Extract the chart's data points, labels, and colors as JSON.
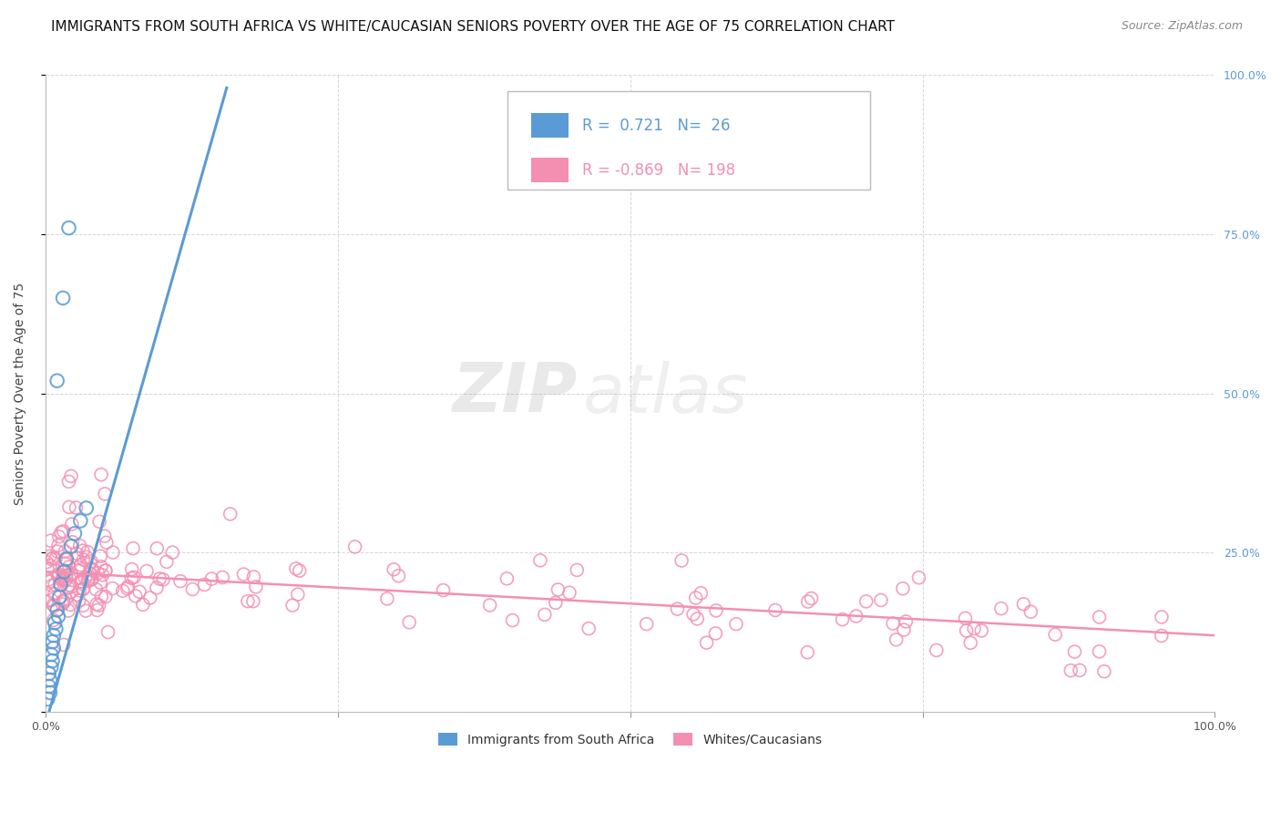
{
  "title": "IMMIGRANTS FROM SOUTH AFRICA VS WHITE/CAUCASIAN SENIORS POVERTY OVER THE AGE OF 75 CORRELATION CHART",
  "source": "Source: ZipAtlas.com",
  "ylabel": "Seniors Poverty Over the Age of 75",
  "xlim": [
    0,
    1
  ],
  "ylim": [
    0,
    1
  ],
  "xtick_positions": [
    0.0,
    0.25,
    0.5,
    0.75,
    1.0
  ],
  "xtick_labels": [
    "0.0%",
    "",
    "",
    "",
    "100.0%"
  ],
  "ytick_positions": [
    0.0,
    0.25,
    0.5,
    0.75,
    1.0
  ],
  "ytick_labels_right": [
    "",
    "25.0%",
    "50.0%",
    "75.0%",
    "100.0%"
  ],
  "blue_color": "#5B9BD5",
  "pink_color": "#F48FB1",
  "blue_R": 0.721,
  "blue_N": 26,
  "pink_R": -0.869,
  "pink_N": 198,
  "legend_label_blue": "Immigrants from South Africa",
  "legend_label_pink": "Whites/Caucasians",
  "watermark_zip": "ZIP",
  "watermark_atlas": "atlas",
  "background_color": "#FFFFFF",
  "grid_color": "#CCCCCC",
  "title_fontsize": 11,
  "axis_label_fontsize": 10,
  "legend_fontsize": 12,
  "tick_fontsize": 9,
  "source_fontsize": 9,
  "blue_scatter_x": [
    0.002,
    0.003,
    0.003,
    0.004,
    0.004,
    0.005,
    0.005,
    0.006,
    0.006,
    0.007,
    0.007,
    0.008,
    0.009,
    0.01,
    0.01,
    0.011,
    0.012,
    0.013,
    0.015,
    0.016,
    0.018,
    0.02,
    0.022,
    0.025,
    0.03,
    0.035
  ],
  "blue_scatter_y": [
    0.02,
    0.04,
    0.06,
    0.03,
    0.05,
    0.07,
    0.09,
    0.11,
    0.08,
    0.12,
    0.1,
    0.14,
    0.13,
    0.16,
    0.52,
    0.15,
    0.18,
    0.2,
    0.65,
    0.22,
    0.24,
    0.76,
    0.26,
    0.28,
    0.3,
    0.32
  ]
}
